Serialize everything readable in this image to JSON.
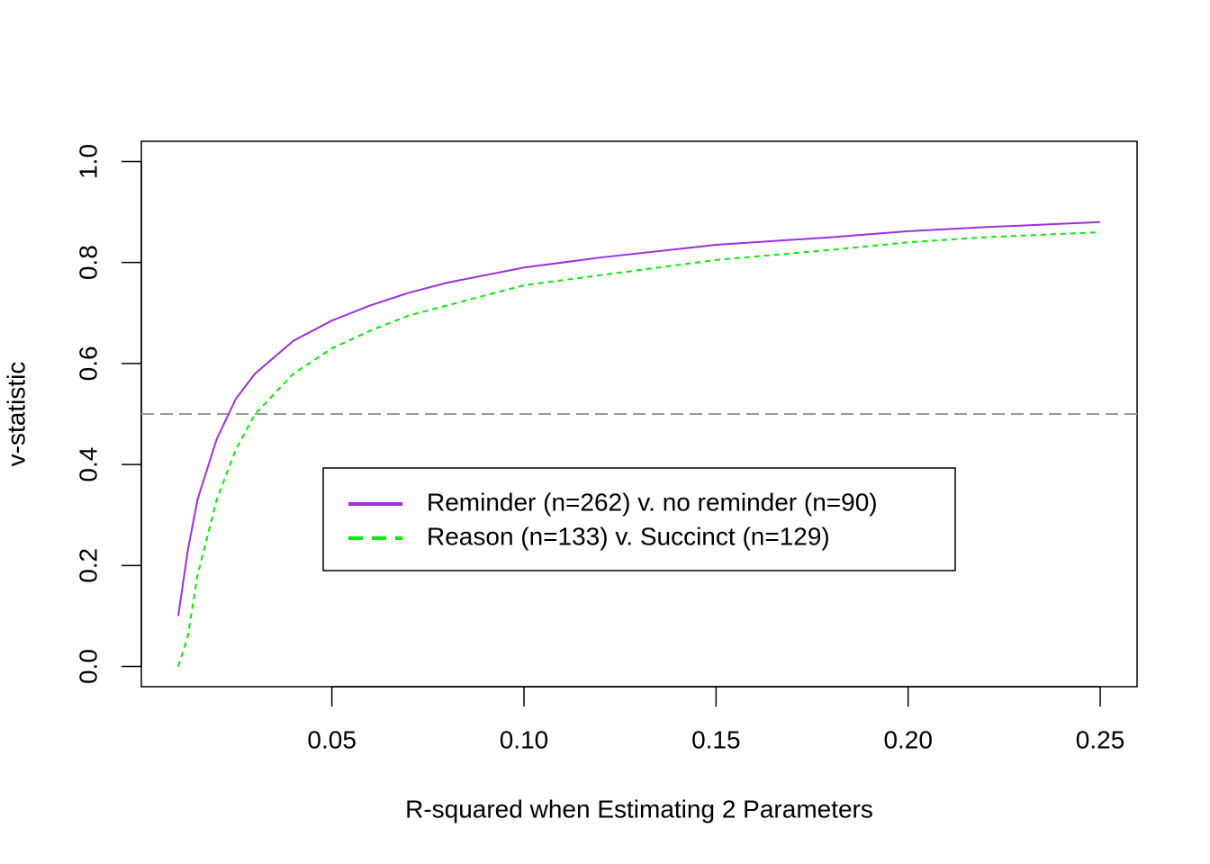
{
  "chart_data": {
    "type": "line",
    "xlabel": "R-squared when Estimating 2 Parameters",
    "ylabel": "v-statistic",
    "x": [
      0.01,
      0.0125,
      0.015,
      0.02,
      0.025,
      0.03,
      0.04,
      0.05,
      0.06,
      0.07,
      0.08,
      0.1,
      0.12,
      0.15,
      0.18,
      0.2,
      0.22,
      0.25
    ],
    "series": [
      {
        "name": "Reminder (n=262) v. no reminder (n=90)",
        "color": "#9b30e0",
        "line_style": "solid",
        "values": [
          0.1,
          0.23,
          0.33,
          0.45,
          0.53,
          0.58,
          0.645,
          0.685,
          0.715,
          0.74,
          0.76,
          0.79,
          0.81,
          0.835,
          0.85,
          0.862,
          0.87,
          0.88
        ]
      },
      {
        "name": "Reason (n=133) v. Succinct (n=129)",
        "color": "#00ee00",
        "line_style": "dashed",
        "values": [
          0.0,
          0.06,
          0.18,
          0.33,
          0.43,
          0.5,
          0.58,
          0.63,
          0.665,
          0.695,
          0.715,
          0.755,
          0.775,
          0.805,
          0.825,
          0.84,
          0.85,
          0.86
        ]
      }
    ],
    "hline": 0.5,
    "hline_color": "#999999",
    "xlim": [
      0.0004,
      0.2596
    ],
    "xticks": [
      0.05,
      {
        "value": 0.1,
        "label": "0.10"
      },
      0.15,
      {
        "value": 0.2,
        "label": "0.20"
      },
      0.25
    ],
    "ylim": [
      -0.04,
      1.04
    ],
    "yticks": [
      {
        "value": 0,
        "label": "0.0"
      },
      0.2,
      0.4,
      0.6,
      0.8,
      {
        "value": 1,
        "label": "1.0"
      }
    ],
    "legend": "center"
  }
}
